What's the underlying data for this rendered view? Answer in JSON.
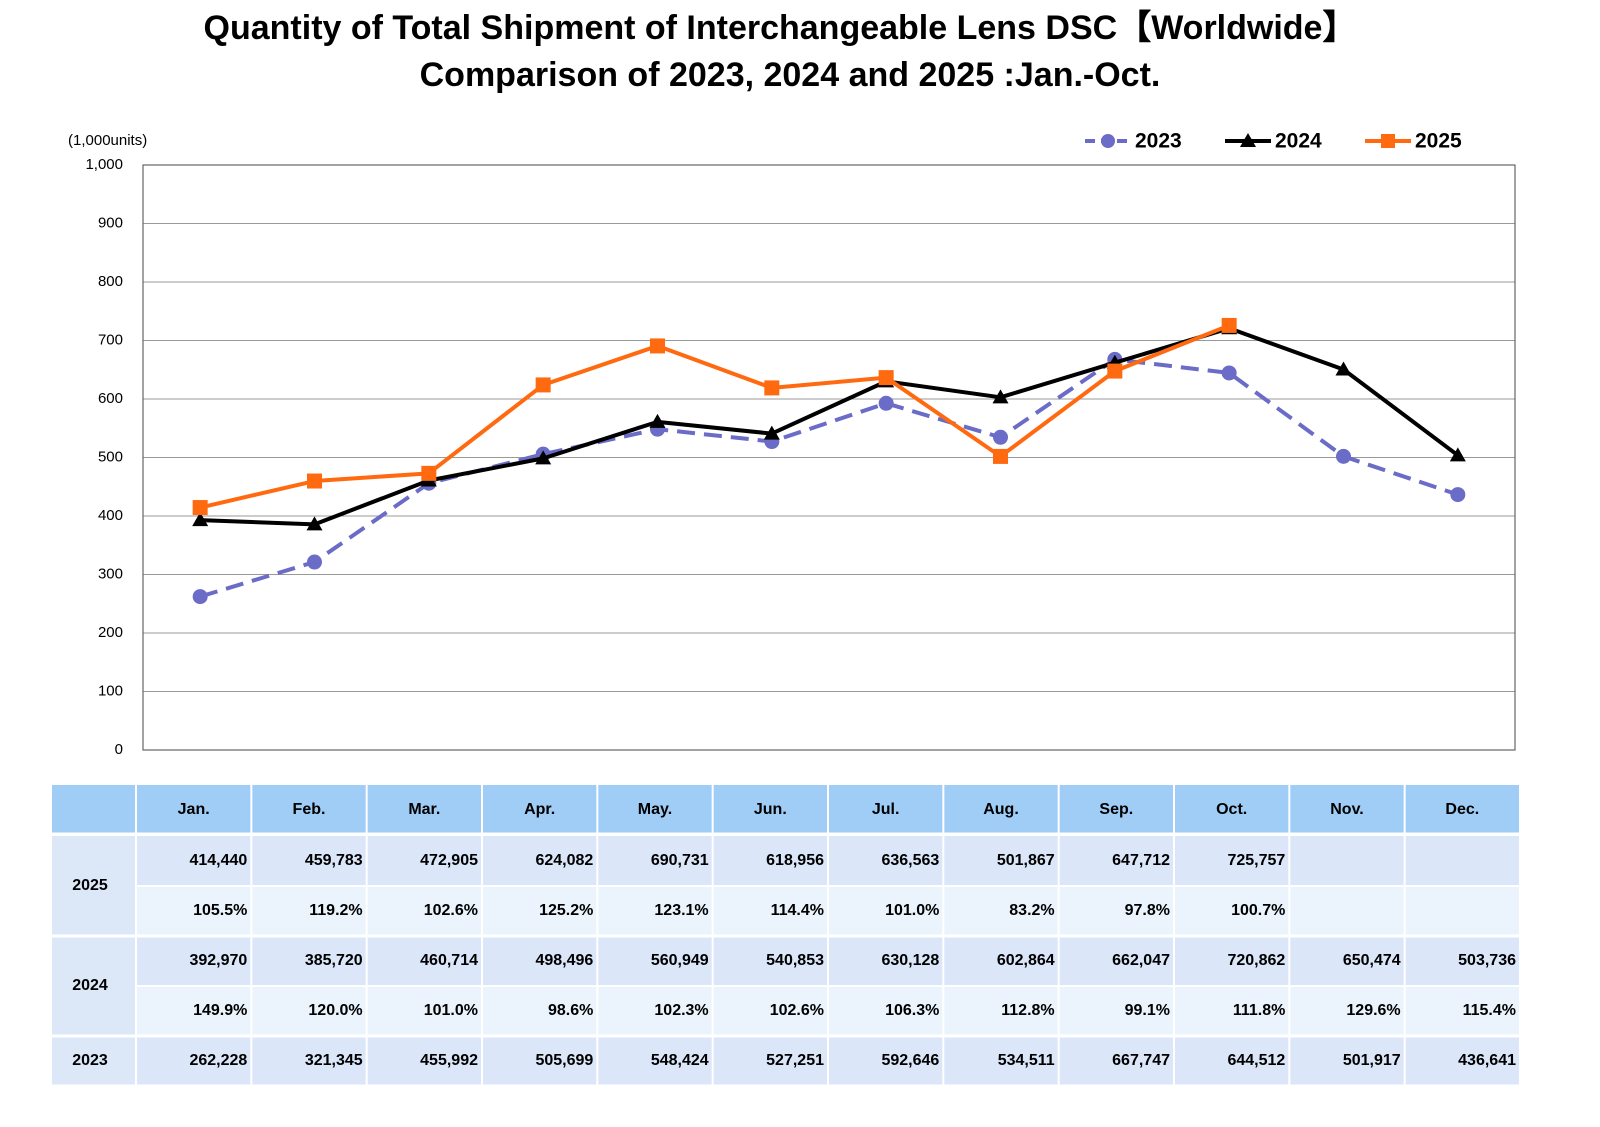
{
  "chart_data": {
    "type": "line",
    "title": "Quantity of Total Shipment of Interchangeable Lens DSC【Worldwide】",
    "subtitle": "Comparison of 2023, 2024 and 2025 :Jan.-Oct.",
    "y_label": "(1,000units)",
    "categories": [
      "Jan.",
      "Feb.",
      "Mar.",
      "Apr.",
      "May.",
      "Jun.",
      "Jul.",
      "Aug.",
      "Sep.",
      "Oct.",
      "Nov.",
      "Dec."
    ],
    "ylim": [
      0,
      1000
    ],
    "yticks": [
      0,
      100,
      200,
      300,
      400,
      500,
      600,
      700,
      800,
      900,
      {
        "value": 1000,
        "label": "1,000"
      }
    ],
    "grid": true,
    "legend": "top-right",
    "series": [
      {
        "name": "2023",
        "color": "#6b6bc8",
        "dashed": true,
        "marker": "circle",
        "values": [
          262.228,
          321.345,
          455.992,
          505.699,
          548.424,
          527.251,
          592.646,
          534.511,
          667.747,
          644.512,
          501.917,
          436.641
        ]
      },
      {
        "name": "2024",
        "color": "#000000",
        "dashed": false,
        "marker": "triangle",
        "values": [
          392.97,
          385.72,
          460.714,
          498.496,
          560.949,
          540.853,
          630.128,
          602.864,
          662.047,
          720.862,
          650.474,
          503.736
        ]
      },
      {
        "name": "2025",
        "color": "#ff6a10",
        "dashed": false,
        "marker": "square",
        "values": [
          414.44,
          459.783,
          472.905,
          624.082,
          690.731,
          618.956,
          636.563,
          501.867,
          647.712,
          725.757,
          null,
          null
        ]
      }
    ]
  },
  "table": {
    "groups": [
      {
        "label": "2025",
        "rows": [
          [
            "414,440",
            "459,783",
            "472,905",
            "624,082",
            "690,731",
            "618,956",
            "636,563",
            "501,867",
            "647,712",
            "725,757"
          ],
          [
            "105.5%",
            "119.2%",
            "102.6%",
            "125.2%",
            "123.1%",
            "114.4%",
            "101.0%",
            "83.2%",
            "97.8%",
            "100.7%"
          ]
        ]
      },
      {
        "label": "2024",
        "rows": [
          [
            "392,970",
            "385,720",
            "460,714",
            "498,496",
            "560,949",
            "540,853",
            "630,128",
            "602,864",
            "662,047",
            "720,862",
            "650,474",
            "503,736"
          ],
          [
            "149.9%",
            "120.0%",
            "101.0%",
            "98.6%",
            "102.3%",
            "102.6%",
            "106.3%",
            "112.8%",
            "99.1%",
            "111.8%",
            "129.6%",
            "115.4%"
          ]
        ]
      },
      {
        "label": "2023",
        "rows": [
          [
            "262,228",
            "321,345",
            "455,992",
            "505,699",
            "548,424",
            "527,251",
            "592,646",
            "534,511",
            "667,747",
            "644,512",
            "501,917",
            "436,641"
          ]
        ]
      }
    ]
  }
}
